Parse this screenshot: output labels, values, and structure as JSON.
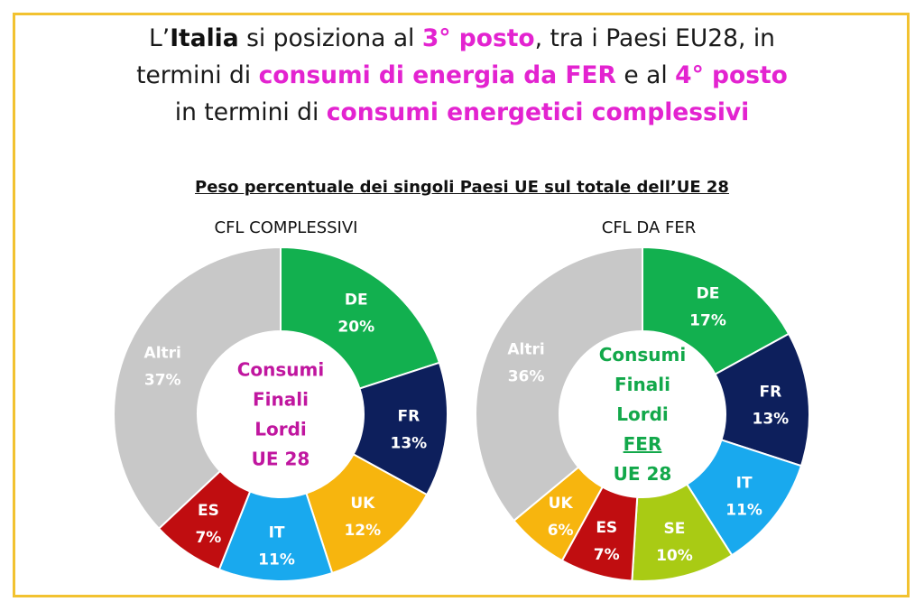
{
  "headline": {
    "line1": {
      "a": "L’",
      "b": "Italia",
      "c": " si posiziona al ",
      "d": "3° posto",
      "e": ", tra i Paesi EU28, in"
    },
    "line2": {
      "a": "termini di ",
      "b": "consumi di energia da FER",
      "c": " e al ",
      "d": "4° posto"
    },
    "line3": {
      "a": "in termini di ",
      "b": "consumi energetici complessivi"
    }
  },
  "subtitle": "Peso percentuale dei singoli Paesi UE sul totale dell’UE 28",
  "colors": {
    "border": "#f2c230",
    "highlight": "#e323d0",
    "green_text": "#12a84a"
  },
  "chart_data": [
    {
      "type": "pie",
      "variant": "donut",
      "title": "CFL COMPLESSIVI",
      "center_text": [
        "Consumi",
        "Finali",
        "Lordi",
        "UE 28"
      ],
      "center_color": "#c0169f",
      "slices": [
        {
          "label": "DE",
          "value": 20,
          "display": "20%",
          "color": "#12b04f"
        },
        {
          "label": "FR",
          "value": 13,
          "display": "13%",
          "color": "#0d1f5c"
        },
        {
          "label": "UK",
          "value": 12,
          "display": "12%",
          "color": "#f7b50e"
        },
        {
          "label": "IT",
          "value": 11,
          "display": "11%",
          "color": "#19a9ee"
        },
        {
          "label": "ES",
          "value": 7,
          "display": "7%",
          "color": "#c00d10"
        },
        {
          "label": "Altri",
          "value": 37,
          "display": "37%",
          "color": "#c8c8c8"
        }
      ]
    },
    {
      "type": "pie",
      "variant": "donut",
      "title": "CFL DA FER",
      "center_text": [
        "Consumi",
        "Finali",
        "Lordi",
        "FER",
        "UE 28"
      ],
      "center_color": "#12a84a",
      "slices": [
        {
          "label": "DE",
          "value": 17,
          "display": "17%",
          "color": "#12b04f"
        },
        {
          "label": "FR",
          "value": 13,
          "display": "13%",
          "color": "#0d1f5c"
        },
        {
          "label": "IT",
          "value": 11,
          "display": "11%",
          "color": "#19a9ee"
        },
        {
          "label": "SE",
          "value": 10,
          "display": "10%",
          "color": "#a9cb14"
        },
        {
          "label": "ES",
          "value": 7,
          "display": "7%",
          "color": "#c00d10"
        },
        {
          "label": "UK",
          "value": 6,
          "display": "6%",
          "color": "#f7b50e"
        },
        {
          "label": "Altri",
          "value": 36,
          "display": "36%",
          "color": "#c8c8c8"
        }
      ]
    }
  ]
}
